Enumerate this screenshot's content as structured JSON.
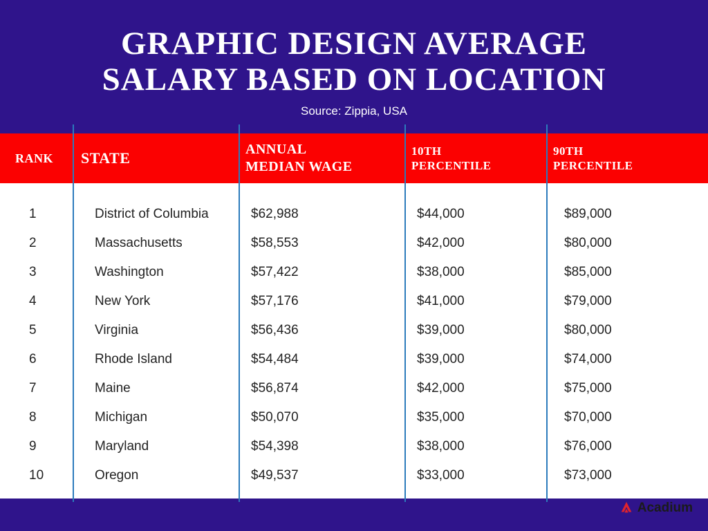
{
  "colors": {
    "dark_purple": "#2f148b",
    "red": "#fb0101",
    "white": "#ffffff",
    "divider": "#2b7bbc",
    "row_text": "#222222",
    "logo_red": "#e2232b",
    "logo_text": "#1b1b1b"
  },
  "typography": {
    "title_fontsize": 47,
    "source_fontsize": 17,
    "header_fontsize_large": 22,
    "header_fontsize_small": 18,
    "row_fontsize": 19
  },
  "title_line1": "GRAPHIC DESIGN AVERAGE",
  "title_line2": "SALARY BASED ON LOCATION",
  "source": "Source: Zippia, USA",
  "columns": {
    "rank": "RANK",
    "state": "STATE",
    "wage_l1": "ANNUAL",
    "wage_l2": "MEDIAN WAGE",
    "p10_l1": "10TH",
    "p10_l2": "PERCENTILE",
    "p90_l1": "90TH",
    "p90_l2": "PERCENTILE"
  },
  "rows": [
    {
      "rank": "1",
      "state": "District of Columbia",
      "wage": "$62,988",
      "p10": "$44,000",
      "p90": "$89,000"
    },
    {
      "rank": "2",
      "state": "Massachusetts",
      "wage": "$58,553",
      "p10": "$42,000",
      "p90": "$80,000"
    },
    {
      "rank": "3",
      "state": "Washington",
      "wage": "$57,422",
      "p10": "$38,000",
      "p90": "$85,000"
    },
    {
      "rank": "4",
      "state": "New York",
      "wage": "$57,176",
      "p10": "$41,000",
      "p90": "$79,000"
    },
    {
      "rank": "5",
      "state": "Virginia",
      "wage": "$56,436",
      "p10": "$39,000",
      "p90": "$80,000"
    },
    {
      "rank": "6",
      "state": "Rhode Island",
      "wage": "$54,484",
      "p10": "$39,000",
      "p90": "$74,000"
    },
    {
      "rank": "7",
      "state": "Maine",
      "wage": "$56,874",
      "p10": "$42,000",
      "p90": "$75,000"
    },
    {
      "rank": "8",
      "state": "Michigan",
      "wage": "$50,070",
      "p10": "$35,000",
      "p90": "$70,000"
    },
    {
      "rank": "9",
      "state": "Maryland",
      "wage": "$54,398",
      "p10": "$38,000",
      "p90": "$76,000"
    },
    {
      "rank": "10",
      "state": "Oregon",
      "wage": "$49,537",
      "p10": "$33,000",
      "p90": "$73,000"
    }
  ],
  "logo_text": "Acadium"
}
